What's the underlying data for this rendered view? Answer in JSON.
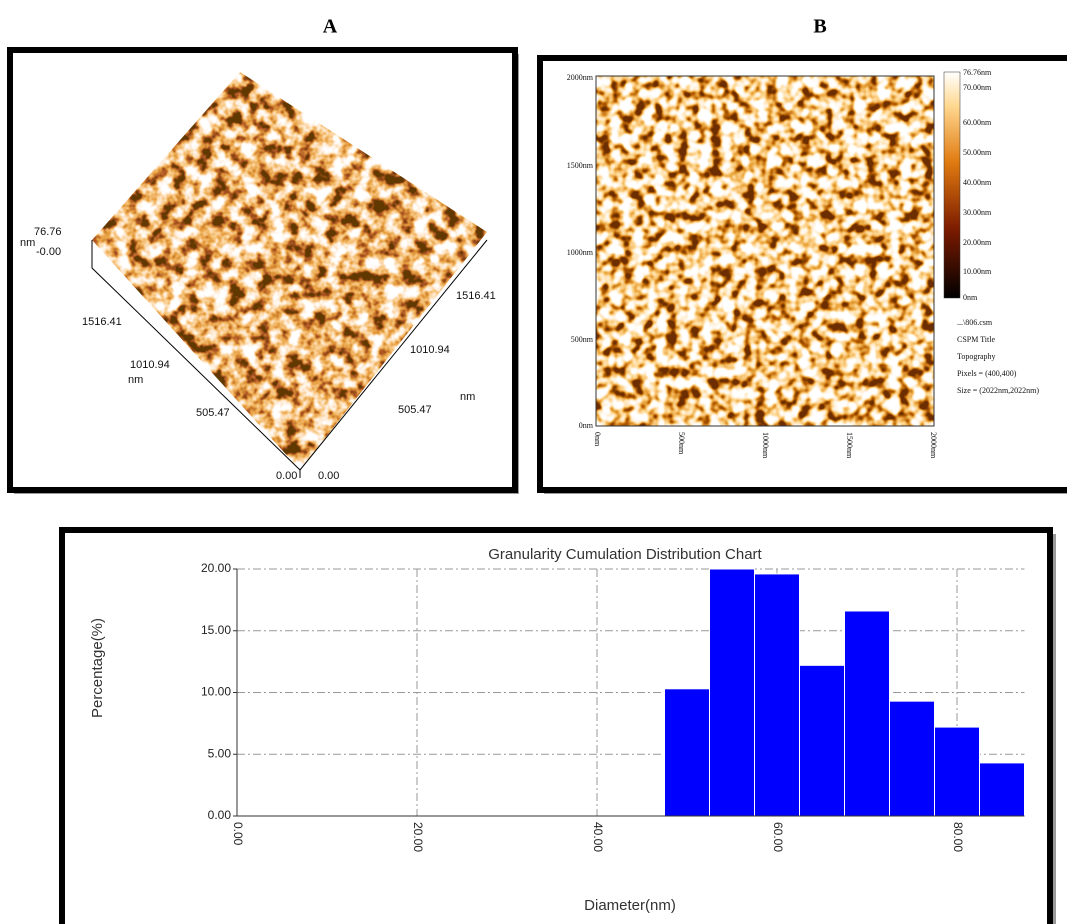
{
  "panels": {
    "a": {
      "label": "A",
      "axis_labels": [
        "76.76",
        "nm",
        "-0.00",
        "1516.41",
        "1010.94",
        "nm",
        "505.47",
        "0.00",
        "0.00",
        "505.47",
        "1010.94",
        "1516.41",
        "nm"
      ]
    },
    "b": {
      "label": "B",
      "y_labels": [
        "2000nm",
        "1500nm",
        "1000nm",
        "500nm",
        "0nm"
      ],
      "x_labels": [
        "0nm",
        "500nm",
        "1000nm",
        "1500nm",
        "2000nm"
      ],
      "colorbar_labels": [
        "76.76nm",
        "70.00nm",
        "60.00nm",
        "50.00nm",
        "40.00nm",
        "30.00nm",
        "20.00nm",
        "10.00nm",
        "0nm"
      ],
      "info": [
        "...\\806.csm",
        "CSPM Title",
        "Topography",
        "Pixels = (400,400)",
        "Size = (2022nm,2022nm)"
      ]
    }
  },
  "chart_data": {
    "type": "histogram",
    "title": "Granularity Cumulation Distribution  Chart",
    "xlabel": "Diameter(nm)",
    "ylabel": "Percentage(%)",
    "bins": [
      47.5,
      52.5,
      57.5,
      62.5,
      67.5,
      72.5,
      77.5,
      82.5,
      87.5
    ],
    "values": [
      10.3,
      20.0,
      19.6,
      12.2,
      16.6,
      9.3,
      7.2,
      4.3
    ],
    "color": "#0000ff",
    "xlim": [
      0,
      87.5
    ],
    "xticks": [
      {
        "value": 0,
        "label": "0.00"
      },
      {
        "value": 20,
        "label": "20.00"
      },
      {
        "value": 40,
        "label": "40.00"
      },
      {
        "value": 60,
        "label": "60.00"
      },
      {
        "value": 80,
        "label": "80.00"
      }
    ],
    "ylim": [
      0,
      20
    ],
    "yticks": [
      {
        "value": 0,
        "label": "0.00"
      },
      {
        "value": 5,
        "label": "5.00"
      },
      {
        "value": 10,
        "label": "10.00"
      },
      {
        "value": 15,
        "label": "15.00"
      },
      {
        "value": 20,
        "label": "20.00"
      }
    ],
    "grid": true
  }
}
